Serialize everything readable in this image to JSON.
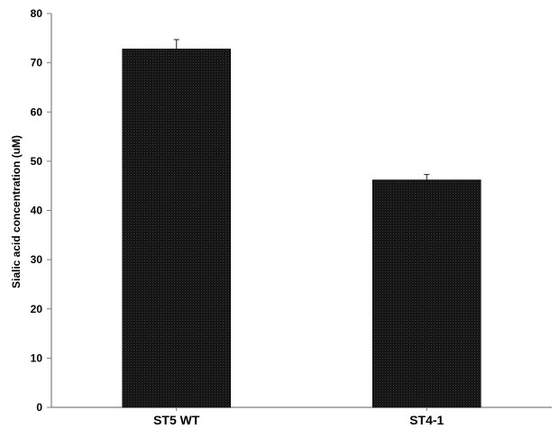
{
  "chart_data": {
    "type": "bar",
    "title": "",
    "xlabel": "",
    "ylabel": "Sialic acid concentration (uM)",
    "categories": [
      "ST5 WT",
      "ST4-1"
    ],
    "values": [
      72.8,
      46.2
    ],
    "error": [
      1.9,
      1.1
    ],
    "ylim": [
      0,
      80
    ],
    "yticks": [
      0,
      10,
      20,
      30,
      40,
      50,
      60,
      70,
      80
    ],
    "grid": false,
    "legend": "none",
    "colors": {
      "bar_fill": "#151515",
      "bar_pattern_dot": "#3a3a3a",
      "axis": "#7f7f7f",
      "text": "#000000"
    }
  }
}
